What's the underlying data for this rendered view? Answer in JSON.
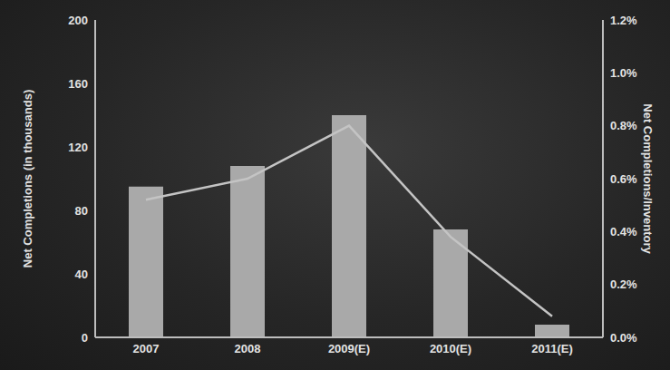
{
  "chart_data": {
    "type": "bar",
    "categories": [
      "2007",
      "2008",
      "2009(E)",
      "2010(E)",
      "2011(E)"
    ],
    "series": [
      {
        "type": "bar",
        "color": "#a9a9a9",
        "values": [
          95,
          108,
          140,
          68,
          8
        ]
      },
      {
        "type": "line",
        "axis": "y2",
        "color": "#c4c4c4",
        "marker": "none",
        "values": [
          0.52,
          0.6,
          0.8,
          0.38,
          0.08
        ]
      }
    ],
    "y_label": "Net Completions (in thousands)",
    "y2_label": "Net Completions/Inventory",
    "ylim": [
      0,
      200
    ],
    "yticks": [
      0,
      40,
      80,
      120,
      160,
      200
    ],
    "y2lim": [
      0,
      1.2
    ],
    "y2ticks": [
      {
        "value": 0,
        "label": "0.0%"
      },
      {
        "value": 0.2,
        "label": "0.2%"
      },
      {
        "value": 0.4,
        "label": "0.4%"
      },
      {
        "value": 0.6,
        "label": "0.6%"
      },
      {
        "value": 0.8,
        "label": "0.8%"
      },
      {
        "value": 1.0,
        "label": "1.0%"
      },
      {
        "value": 1.2,
        "label": "1.2%"
      }
    ],
    "grid": false
  }
}
